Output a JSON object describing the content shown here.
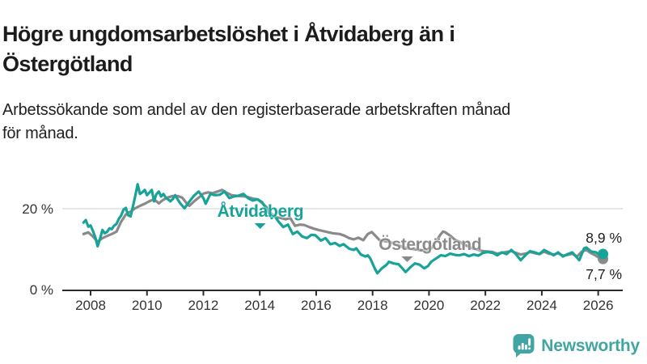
{
  "header": {
    "title_lines": [
      "Högre ungdomsarbetslöshet i Åtvidaberg än i",
      "Östergötland"
    ],
    "subtitle_lines": [
      "Arbetssökande som andel av den registerbaserade arbetskraften månad",
      "för månad."
    ]
  },
  "footer": {
    "brand_name": "Newsworthy",
    "brand_color": "#41A5A3"
  },
  "chart_data": {
    "type": "line",
    "title": "Högre ungdomsarbetslöshet i Åtvidaberg än i Östergötland",
    "subtitle": "Arbetssökande som andel av den registerbaserade arbetskraften månad för månad.",
    "unit": "%",
    "xlim": [
      2007.6,
      2026.5
    ],
    "ylim": [
      0,
      30
    ],
    "grid": "horizontal-20-only",
    "legend_position": "inline-labels",
    "x_ticks": [
      {
        "value": 2008,
        "label": "2008"
      },
      {
        "value": 2010,
        "label": "2010"
      },
      {
        "value": 2012,
        "label": "2012"
      },
      {
        "value": 2014,
        "label": "2014"
      },
      {
        "value": 2016,
        "label": "2016"
      },
      {
        "value": 2018,
        "label": "2018"
      },
      {
        "value": 2020,
        "label": "2020"
      },
      {
        "value": 2022,
        "label": "2022"
      },
      {
        "value": 2024,
        "label": "2024"
      },
      {
        "value": 2026,
        "label": "2026"
      }
    ],
    "y_ticks": [
      {
        "value": 0,
        "label": "0 %"
      },
      {
        "value": 20,
        "label": "20 %"
      }
    ],
    "series": [
      {
        "name": "Åtvidaberg",
        "color": "#17A398",
        "end_value_label": "8,9 %",
        "end_value": 8.9,
        "label_anchor": {
          "x": 2014.02,
          "y": 19.2
        },
        "points": [
          [
            2007.75,
            16.6
          ],
          [
            2007.83,
            17.2
          ],
          [
            2007.92,
            15.6
          ],
          [
            2008.0,
            15.9
          ],
          [
            2008.08,
            14.6
          ],
          [
            2008.17,
            13.0
          ],
          [
            2008.25,
            10.8
          ],
          [
            2008.33,
            12.5
          ],
          [
            2008.42,
            14.8
          ],
          [
            2008.5,
            14.0
          ],
          [
            2008.58,
            14.3
          ],
          [
            2008.67,
            15.2
          ],
          [
            2008.75,
            15.0
          ],
          [
            2008.83,
            15.8
          ],
          [
            2008.92,
            16.3
          ],
          [
            2009.0,
            17.5
          ],
          [
            2009.08,
            18.3
          ],
          [
            2009.17,
            19.8
          ],
          [
            2009.25,
            20.2
          ],
          [
            2009.33,
            18.4
          ],
          [
            2009.42,
            18.1
          ],
          [
            2009.5,
            20.5
          ],
          [
            2009.58,
            23.0
          ],
          [
            2009.67,
            26.0
          ],
          [
            2009.75,
            23.6
          ],
          [
            2009.83,
            24.0
          ],
          [
            2009.92,
            24.6
          ],
          [
            2010.0,
            23.3
          ],
          [
            2010.17,
            24.6
          ],
          [
            2010.25,
            21.8
          ],
          [
            2010.33,
            23.5
          ],
          [
            2010.42,
            24.2
          ],
          [
            2010.5,
            23.0
          ],
          [
            2010.58,
            23.6
          ],
          [
            2010.67,
            22.7
          ],
          [
            2010.83,
            21.8
          ],
          [
            2010.92,
            22.4
          ],
          [
            2011.0,
            23.3
          ],
          [
            2011.08,
            22.4
          ],
          [
            2011.17,
            21.4
          ],
          [
            2011.33,
            20.1
          ],
          [
            2011.5,
            21.7
          ],
          [
            2011.67,
            23.2
          ],
          [
            2011.83,
            24.2
          ],
          [
            2011.92,
            23.4
          ],
          [
            2012.0,
            22.6
          ],
          [
            2012.08,
            21.2
          ],
          [
            2012.25,
            23.6
          ],
          [
            2012.42,
            23.3
          ],
          [
            2012.58,
            23.4
          ],
          [
            2012.75,
            24.2
          ],
          [
            2012.92,
            22.6
          ],
          [
            2013.08,
            23.0
          ],
          [
            2013.25,
            23.2
          ],
          [
            2013.42,
            23.6
          ],
          [
            2013.58,
            22.6
          ],
          [
            2013.75,
            22.0
          ],
          [
            2013.92,
            22.3
          ],
          [
            2014.08,
            21.6
          ],
          [
            2014.25,
            19.8
          ],
          [
            2014.42,
            17.7
          ],
          [
            2014.5,
            18.4
          ],
          [
            2014.67,
            16.8
          ],
          [
            2014.83,
            15.5
          ],
          [
            2015.0,
            16.1
          ],
          [
            2015.17,
            13.8
          ],
          [
            2015.33,
            14.4
          ],
          [
            2015.5,
            13.2
          ],
          [
            2015.67,
            12.8
          ],
          [
            2015.83,
            13.6
          ],
          [
            2015.97,
            13.5
          ],
          [
            2016.17,
            12.2
          ],
          [
            2016.33,
            12.8
          ],
          [
            2016.5,
            11.3
          ],
          [
            2016.67,
            11.6
          ],
          [
            2016.83,
            10.9
          ],
          [
            2016.97,
            11.3
          ],
          [
            2017.17,
            10.2
          ],
          [
            2017.33,
            9.9
          ],
          [
            2017.42,
            10.3
          ],
          [
            2017.58,
            8.8
          ],
          [
            2017.75,
            8.3
          ],
          [
            2017.83,
            8.6
          ],
          [
            2017.92,
            7.8
          ],
          [
            2018.08,
            5.3
          ],
          [
            2018.17,
            4.2
          ],
          [
            2018.33,
            5.4
          ],
          [
            2018.5,
            6.3
          ],
          [
            2018.58,
            7.0
          ],
          [
            2018.75,
            6.6
          ],
          [
            2018.92,
            6.4
          ],
          [
            2019.08,
            5.2
          ],
          [
            2019.17,
            4.5
          ],
          [
            2019.33,
            5.6
          ],
          [
            2019.5,
            6.6
          ],
          [
            2019.67,
            6.3
          ],
          [
            2019.83,
            5.4
          ],
          [
            2019.97,
            6.0
          ],
          [
            2020.08,
            7.0
          ],
          [
            2020.25,
            7.8
          ],
          [
            2020.42,
            8.6
          ],
          [
            2020.58,
            8.4
          ],
          [
            2020.75,
            9.0
          ],
          [
            2020.92,
            8.7
          ],
          [
            2021.08,
            8.6
          ],
          [
            2021.25,
            8.9
          ],
          [
            2021.42,
            8.4
          ],
          [
            2021.58,
            8.8
          ],
          [
            2021.75,
            8.5
          ],
          [
            2021.92,
            9.2
          ],
          [
            2022.08,
            9.4
          ],
          [
            2022.25,
            9.2
          ],
          [
            2022.42,
            8.6
          ],
          [
            2022.58,
            9.3
          ],
          [
            2022.75,
            8.9
          ],
          [
            2022.92,
            9.9
          ],
          [
            2023.08,
            8.9
          ],
          [
            2023.25,
            7.4
          ],
          [
            2023.42,
            8.6
          ],
          [
            2023.58,
            9.6
          ],
          [
            2023.75,
            9.3
          ],
          [
            2023.92,
            8.9
          ],
          [
            2024.08,
            9.9
          ],
          [
            2024.25,
            9.3
          ],
          [
            2024.42,
            8.6
          ],
          [
            2024.58,
            9.3
          ],
          [
            2024.75,
            8.3
          ],
          [
            2024.92,
            8.9
          ],
          [
            2025.08,
            9.3
          ],
          [
            2025.25,
            8.0
          ],
          [
            2025.33,
            7.4
          ],
          [
            2025.5,
            10.3
          ],
          [
            2025.58,
            10.5
          ],
          [
            2025.75,
            9.5
          ],
          [
            2025.92,
            9.3
          ],
          [
            2026.08,
            8.6
          ],
          [
            2026.17,
            8.9
          ]
        ]
      },
      {
        "name": "Östergötland",
        "color": "#8A8A8A",
        "end_value_label": "7,7 %",
        "end_value": 7.7,
        "label_anchor": {
          "x": 2020.04,
          "y": 11.1
        },
        "points": [
          [
            2007.75,
            13.8
          ],
          [
            2007.92,
            14.2
          ],
          [
            2008.08,
            13.2
          ],
          [
            2008.25,
            11.9
          ],
          [
            2008.42,
            12.8
          ],
          [
            2008.58,
            13.3
          ],
          [
            2008.75,
            13.8
          ],
          [
            2008.92,
            14.4
          ],
          [
            2009.08,
            16.8
          ],
          [
            2009.25,
            18.6
          ],
          [
            2009.42,
            19.3
          ],
          [
            2009.58,
            20.1
          ],
          [
            2009.75,
            20.7
          ],
          [
            2009.92,
            21.2
          ],
          [
            2010.08,
            21.8
          ],
          [
            2010.25,
            22.3
          ],
          [
            2010.42,
            21.3
          ],
          [
            2010.58,
            22.2
          ],
          [
            2010.75,
            22.8
          ],
          [
            2010.92,
            23.1
          ],
          [
            2011.08,
            23.1
          ],
          [
            2011.25,
            22.7
          ],
          [
            2011.42,
            21.2
          ],
          [
            2011.5,
            20.7
          ],
          [
            2011.67,
            21.8
          ],
          [
            2011.83,
            22.7
          ],
          [
            2012.0,
            23.7
          ],
          [
            2012.17,
            24.0
          ],
          [
            2012.33,
            23.8
          ],
          [
            2012.5,
            24.2
          ],
          [
            2012.67,
            24.6
          ],
          [
            2012.83,
            23.9
          ],
          [
            2013.0,
            23.3
          ],
          [
            2013.25,
            23.1
          ],
          [
            2013.5,
            23.0
          ],
          [
            2013.75,
            22.5
          ],
          [
            2013.92,
            22.3
          ],
          [
            2014.08,
            21.4
          ],
          [
            2014.25,
            20.3
          ],
          [
            2014.42,
            18.7
          ],
          [
            2014.58,
            17.9
          ],
          [
            2014.75,
            17.7
          ],
          [
            2014.92,
            17.4
          ],
          [
            2015.08,
            17.7
          ],
          [
            2015.25,
            15.8
          ],
          [
            2015.42,
            16.1
          ],
          [
            2015.58,
            16.0
          ],
          [
            2015.75,
            15.5
          ],
          [
            2015.92,
            15.1
          ],
          [
            2016.08,
            14.8
          ],
          [
            2016.33,
            14.4
          ],
          [
            2016.58,
            14.0
          ],
          [
            2016.83,
            13.8
          ],
          [
            2017.0,
            13.4
          ],
          [
            2017.17,
            12.8
          ],
          [
            2017.33,
            12.5
          ],
          [
            2017.5,
            12.9
          ],
          [
            2017.67,
            12.3
          ],
          [
            2017.83,
            13.8
          ],
          [
            2017.97,
            14.3
          ],
          [
            2018.08,
            13.5
          ],
          [
            2018.25,
            12.3
          ],
          [
            2018.42,
            12.1
          ],
          [
            2018.58,
            11.9
          ],
          [
            2018.75,
            11.5
          ],
          [
            2018.92,
            11.0
          ],
          [
            2019.08,
            10.6
          ],
          [
            2019.25,
            10.3
          ],
          [
            2019.42,
            10.1
          ],
          [
            2019.58,
            10.0
          ],
          [
            2019.75,
            9.8
          ],
          [
            2019.92,
            9.6
          ],
          [
            2020.08,
            10.3
          ],
          [
            2020.25,
            12.0
          ],
          [
            2020.42,
            13.8
          ],
          [
            2020.5,
            14.4
          ],
          [
            2020.58,
            14.2
          ],
          [
            2020.75,
            13.4
          ],
          [
            2020.92,
            12.4
          ],
          [
            2021.08,
            11.9
          ],
          [
            2021.25,
            11.2
          ],
          [
            2021.42,
            10.7
          ],
          [
            2021.58,
            10.2
          ],
          [
            2021.75,
            9.9
          ],
          [
            2021.92,
            9.6
          ],
          [
            2022.08,
            9.5
          ],
          [
            2022.25,
            9.4
          ],
          [
            2022.42,
            9.0
          ],
          [
            2022.58,
            9.2
          ],
          [
            2022.75,
            9.4
          ],
          [
            2022.92,
            9.6
          ],
          [
            2023.08,
            9.2
          ],
          [
            2023.25,
            8.8
          ],
          [
            2023.42,
            9.0
          ],
          [
            2023.58,
            9.4
          ],
          [
            2023.75,
            9.1
          ],
          [
            2023.92,
            8.9
          ],
          [
            2024.08,
            9.5
          ],
          [
            2024.25,
            9.0
          ],
          [
            2024.42,
            8.8
          ],
          [
            2024.58,
            9.1
          ],
          [
            2024.75,
            8.5
          ],
          [
            2024.92,
            8.7
          ],
          [
            2025.08,
            9.0
          ],
          [
            2025.25,
            8.3
          ],
          [
            2025.42,
            9.5
          ],
          [
            2025.58,
            9.9
          ],
          [
            2025.75,
            9.1
          ],
          [
            2025.92,
            8.5
          ],
          [
            2026.08,
            7.8
          ],
          [
            2026.17,
            7.7
          ]
        ]
      }
    ]
  }
}
